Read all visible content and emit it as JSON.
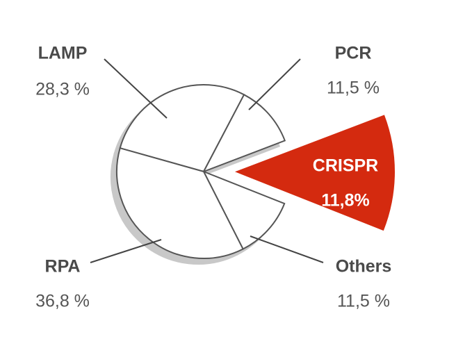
{
  "chart_data": {
    "type": "pie",
    "categories": [
      "LAMP",
      "PCR",
      "CRISPR",
      "Others",
      "RPA"
    ],
    "values": [
      28.3,
      11.5,
      11.8,
      11.5,
      36.8
    ],
    "value_labels": [
      "28,3 %",
      "11,5 %",
      "11,8%",
      "11,5 %",
      "36,8 %"
    ],
    "colors": [
      "#ffffff",
      "#ffffff",
      "#d42a0f",
      "#ffffff",
      "#ffffff"
    ],
    "exploded": [
      false,
      false,
      true,
      false,
      false
    ]
  }
}
